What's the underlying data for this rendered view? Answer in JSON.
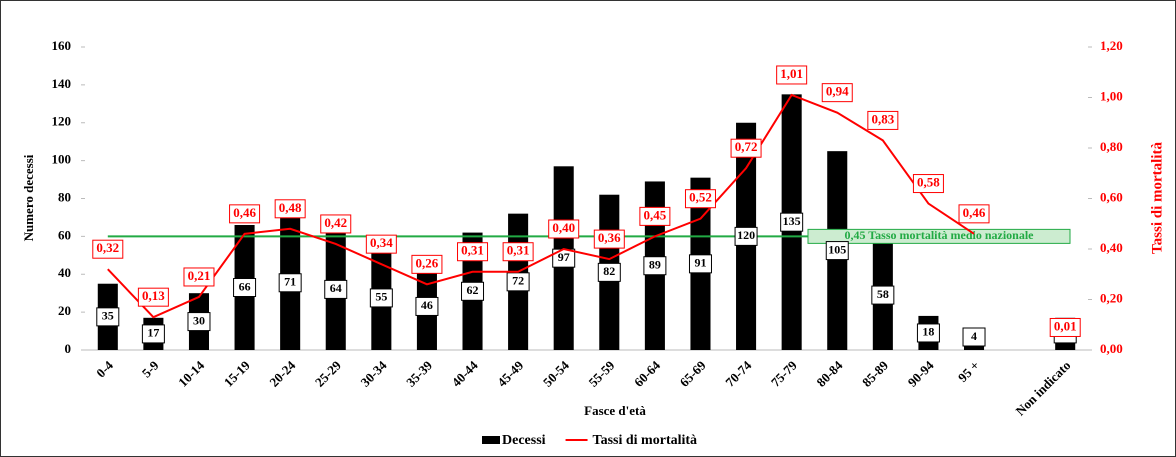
{
  "chart_data": {
    "type": "bar_line",
    "xlabel": "Fasce d'età",
    "ylabel": "Numero decessi",
    "y2label": "Tassi di mortalità",
    "categories": [
      "0-4",
      "5-9",
      "10-14",
      "15-19",
      "20-24",
      "25-29",
      "30-34",
      "35-39",
      "40-44",
      "45-49",
      "50-54",
      "55-59",
      "60-64",
      "65-69",
      "70-74",
      "75-79",
      "80-84",
      "85-89",
      "90-94",
      "95 +",
      null,
      "Non indicato"
    ],
    "series": [
      {
        "name": "Decessi",
        "type": "bar",
        "color": "#000000",
        "values": [
          35,
          17,
          30,
          66,
          71,
          64,
          55,
          46,
          62,
          72,
          97,
          82,
          89,
          91,
          120,
          135,
          105,
          58,
          18,
          4,
          null,
          17
        ]
      },
      {
        "name": "Tassi di mortalità",
        "type": "line",
        "axis": "y2",
        "color": "#ff0000",
        "values": [
          0.32,
          0.13,
          0.21,
          0.46,
          0.48,
          0.42,
          0.34,
          0.26,
          0.31,
          0.31,
          0.4,
          0.36,
          0.45,
          0.52,
          0.72,
          1.01,
          0.94,
          0.83,
          0.58,
          0.46,
          null,
          0.01
        ],
        "value_labels": [
          "0,32",
          "0,13",
          "0,21",
          "0,46",
          "0,48",
          "0,42",
          "0,34",
          "0,26",
          "0,31",
          "0,31",
          "0,40",
          "0,36",
          "0,45",
          "0,52",
          "0,72",
          "1,01",
          "0,94",
          "0,83",
          "0,58",
          "0,46",
          null,
          "0,01"
        ]
      }
    ],
    "reference_line": {
      "value": 0.45,
      "label": "0,45 Tasso mortalità medio nazionale",
      "color": "#22aa44",
      "axis": "y2"
    },
    "ylim": [
      0,
      160
    ],
    "yticks": [
      0,
      20,
      40,
      60,
      80,
      100,
      120,
      140,
      160
    ],
    "y2lim": [
      0,
      1.2
    ],
    "y2ticks": [
      {
        "value": 0,
        "label": "0,00"
      },
      {
        "value": 0.2,
        "label": "0,20"
      },
      {
        "value": 0.4,
        "label": "0,40"
      },
      {
        "value": 0.6,
        "label": "0,60"
      },
      {
        "value": 0.8,
        "label": "0,80"
      },
      {
        "value": 1.0,
        "label": "1,00"
      },
      {
        "value": 1.2,
        "label": "1,20"
      }
    ],
    "grid": false
  }
}
